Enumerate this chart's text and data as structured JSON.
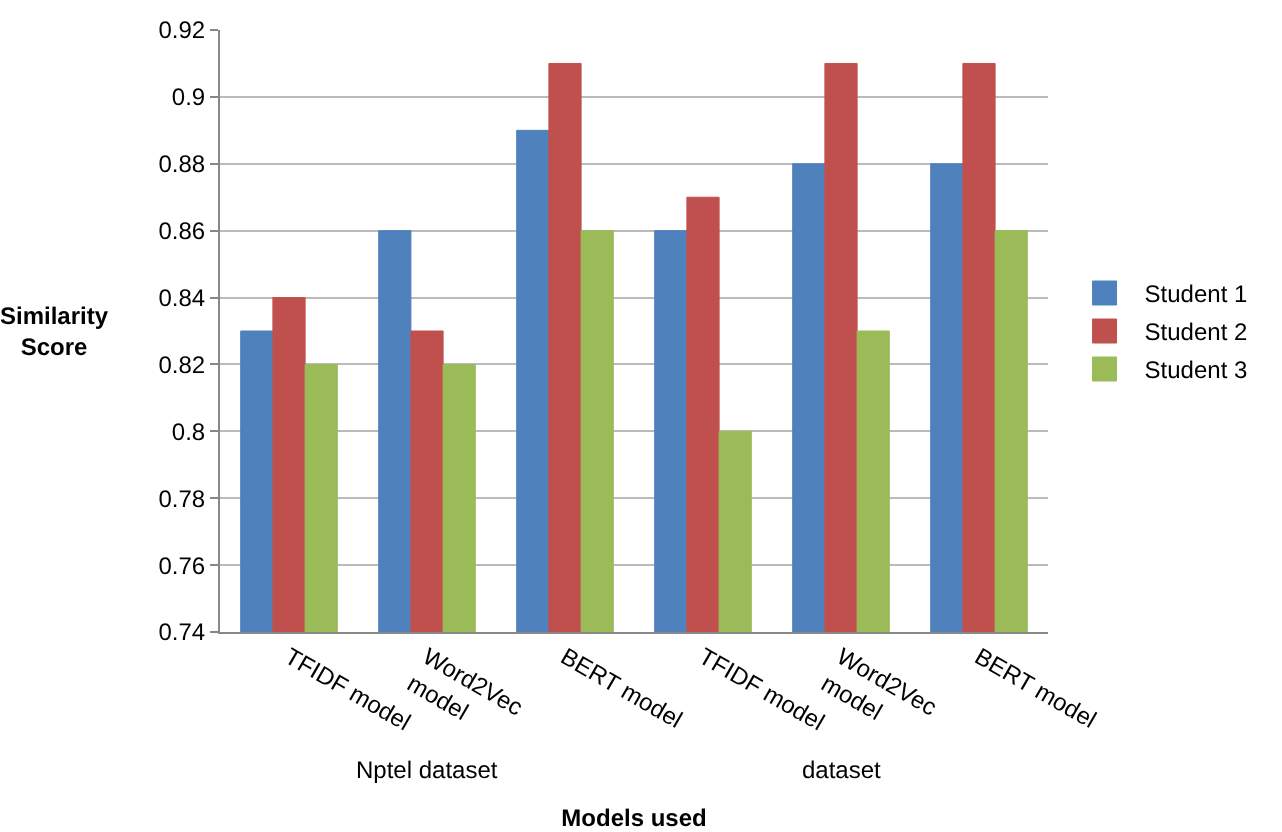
{
  "chart_data": {
    "type": "bar",
    "xlabel": "Models used",
    "ylabel": "Similarity Score",
    "categories": [
      "TFIDF model",
      "Word2Vec model",
      "BERT model",
      "TFIDF model",
      "Word2Vec model",
      "BERT model"
    ],
    "series": [
      {
        "name": "Student 1",
        "color": "#4f81bd",
        "values": [
          0.83,
          0.86,
          0.89,
          0.86,
          0.88,
          0.88
        ]
      },
      {
        "name": "Student 2",
        "color": "#c0504d",
        "values": [
          0.84,
          0.83,
          0.91,
          0.87,
          0.91,
          0.91
        ]
      },
      {
        "name": "Student 3",
        "color": "#9bbb59",
        "values": [
          0.82,
          0.82,
          0.86,
          0.8,
          0.83,
          0.86
        ]
      }
    ],
    "annotations": [
      "Nptel dataset",
      "dataset"
    ],
    "ylim": [
      0.74,
      0.92
    ],
    "yticks": [
      0.74,
      0.76,
      0.78,
      0.8,
      0.82,
      0.84,
      0.86,
      0.88,
      0.9,
      0.92
    ],
    "grid": "y",
    "legend": "right"
  }
}
